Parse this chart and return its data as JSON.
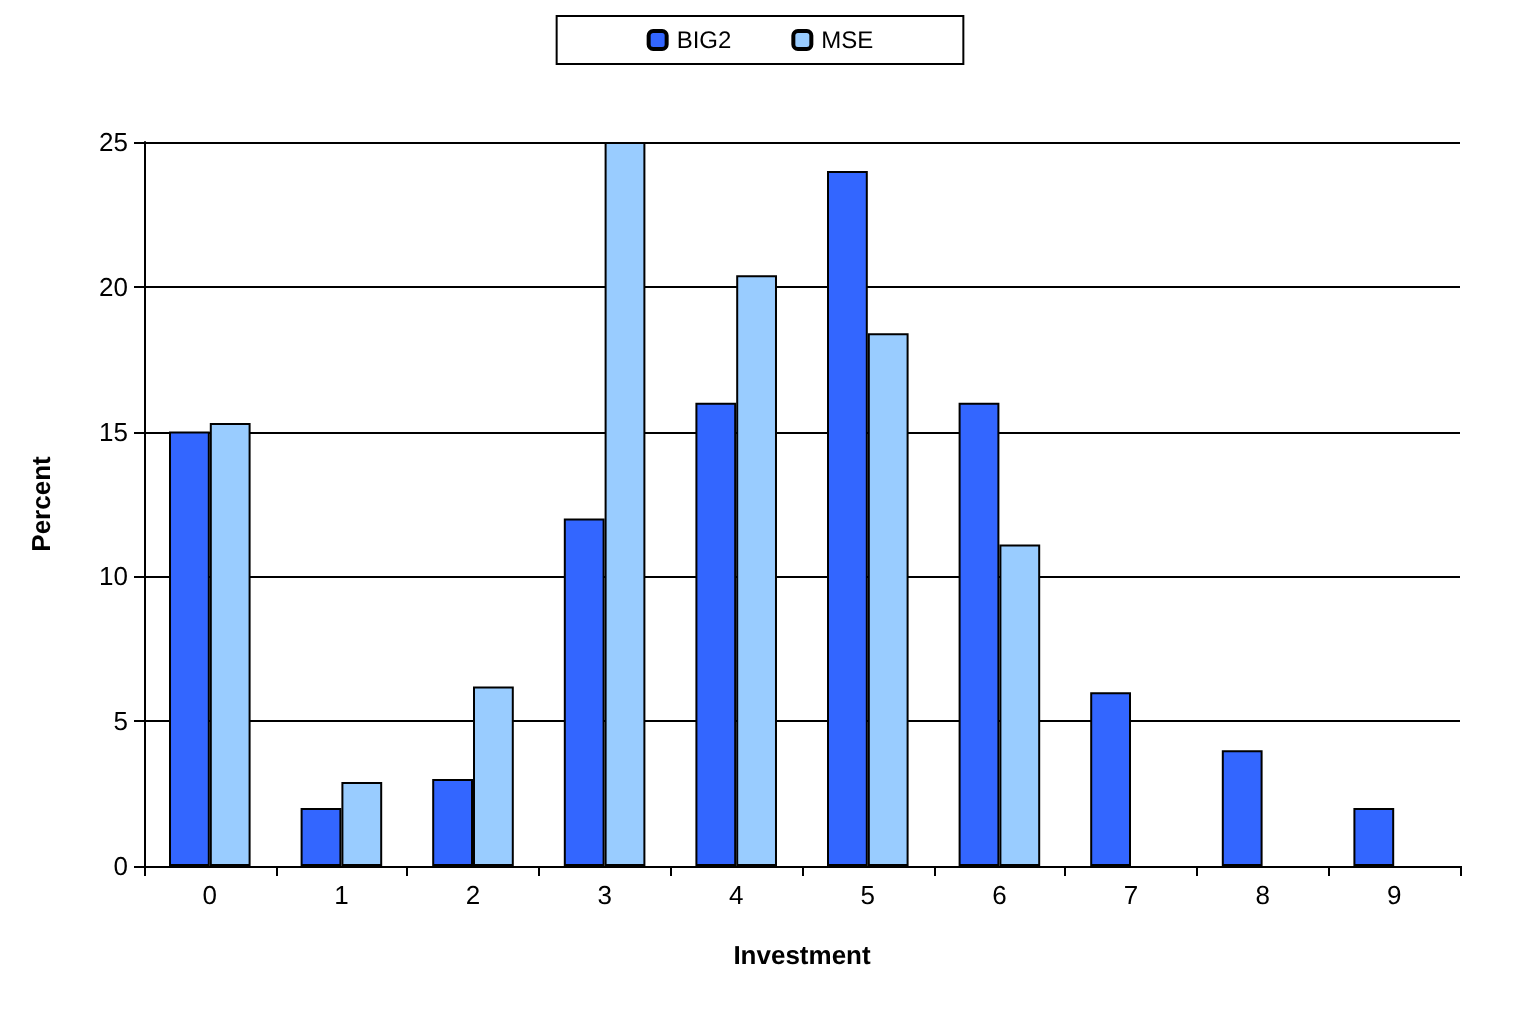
{
  "chart_data": {
    "type": "bar",
    "xlabel": "Investment",
    "ylabel": "Percent",
    "categories": [
      "0",
      "1",
      "2",
      "3",
      "4",
      "5",
      "6",
      "7",
      "8",
      "9"
    ],
    "series": [
      {
        "name": "BIG2",
        "color": "#3366ff",
        "values": [
          15,
          2,
          3,
          12,
          16,
          24,
          16,
          6,
          4,
          2
        ]
      },
      {
        "name": "MSE",
        "color": "#99ccff",
        "values": [
          15.3,
          2.9,
          6.2,
          25,
          20.4,
          18.4,
          11.1,
          null,
          null,
          null
        ]
      }
    ],
    "ylim": [
      0,
      25
    ],
    "yticks": [
      0,
      5,
      10,
      15,
      20,
      25
    ],
    "grid": "y",
    "legend": "top"
  }
}
